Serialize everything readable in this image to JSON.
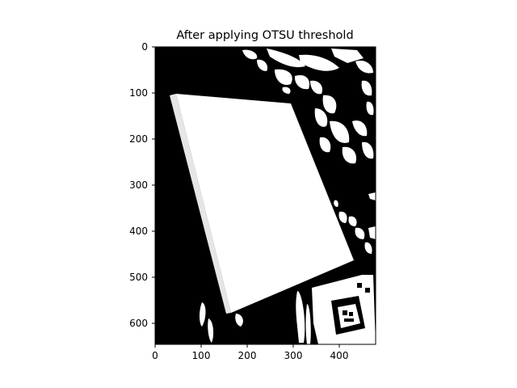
{
  "figure": {
    "title": "After applying OTSU threshold",
    "image_description": "binary (black/white) thresholded image of a tilted rectangular sheet with cluttered background"
  },
  "axes": {
    "x_ticks": [
      "0",
      "100",
      "200",
      "300",
      "400"
    ],
    "y_ticks": [
      "0",
      "100",
      "200",
      "300",
      "400",
      "500",
      "600"
    ]
  },
  "colors": {
    "foreground": "#ffffff",
    "background": "#000000",
    "axes": "#000000"
  }
}
